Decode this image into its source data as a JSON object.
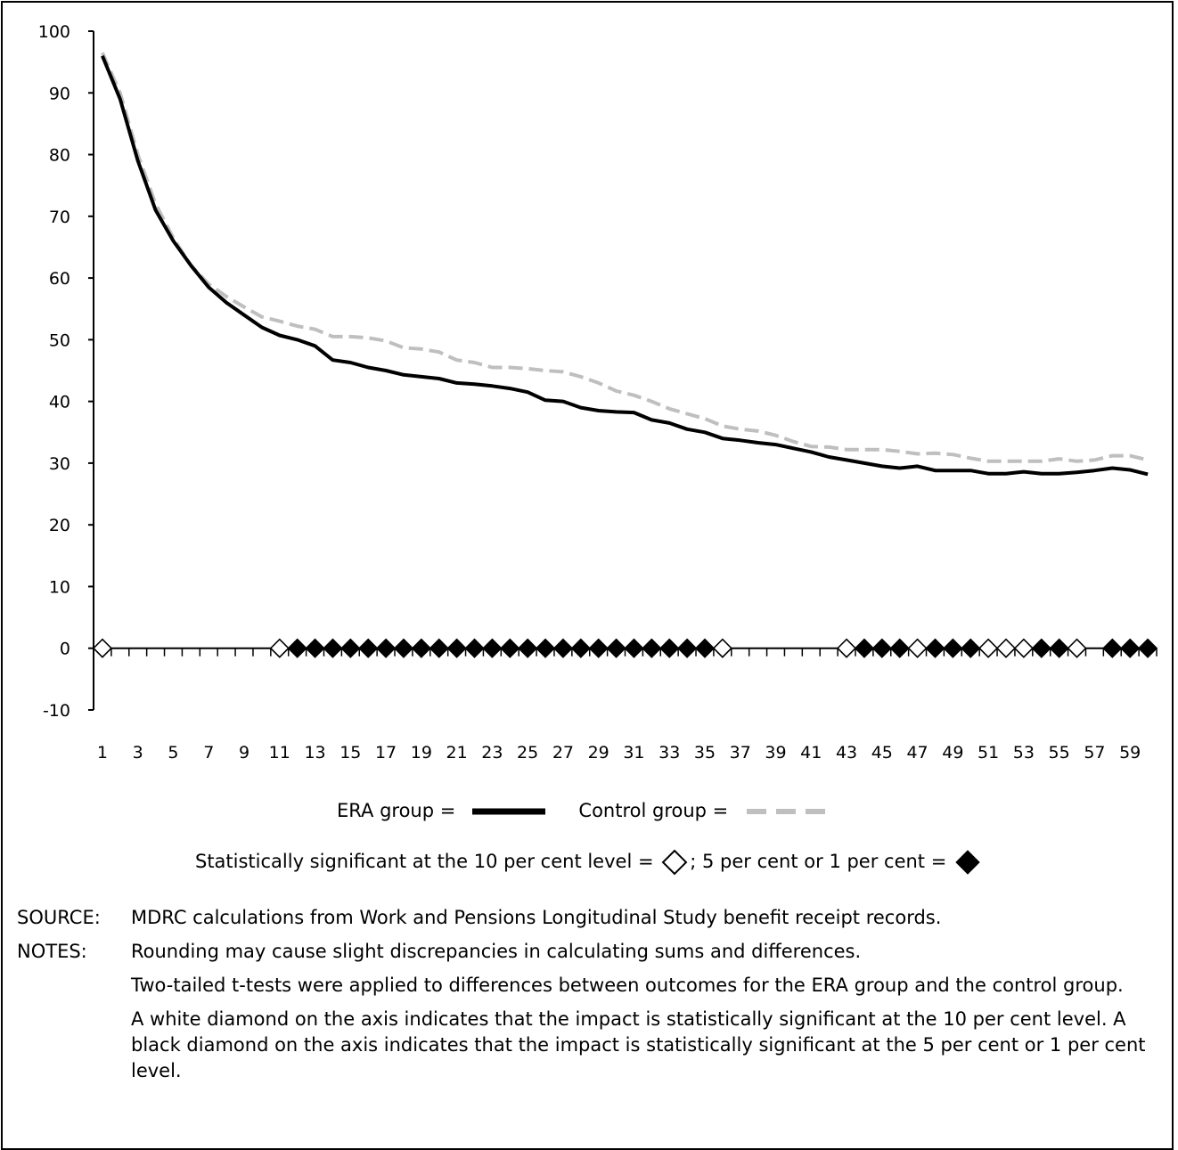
{
  "chart_data": {
    "type": "line",
    "x": [
      1,
      2,
      3,
      4,
      5,
      6,
      7,
      8,
      9,
      10,
      11,
      12,
      13,
      14,
      15,
      16,
      17,
      18,
      19,
      20,
      21,
      22,
      23,
      24,
      25,
      26,
      27,
      28,
      29,
      30,
      31,
      32,
      33,
      34,
      35,
      36,
      37,
      38,
      39,
      40,
      41,
      42,
      43,
      44,
      45,
      46,
      47,
      48,
      49,
      50,
      51,
      52,
      53,
      54,
      55,
      56,
      57,
      58,
      59,
      60
    ],
    "x_tick_labels": [
      "1",
      "3",
      "5",
      "7",
      "9",
      "11",
      "13",
      "15",
      "17",
      "19",
      "21",
      "23",
      "25",
      "27",
      "29",
      "31",
      "33",
      "35",
      "37",
      "39",
      "41",
      "43",
      "45",
      "47",
      "49",
      "51",
      "53",
      "55",
      "57",
      "59"
    ],
    "ylim": [
      -10,
      100
    ],
    "y_ticks": [
      "-10",
      "0",
      "10",
      "20",
      "30",
      "40",
      "50",
      "60",
      "70",
      "80",
      "90",
      "100"
    ],
    "series": [
      {
        "name": "ERA group",
        "color": "#000000",
        "style": "solid",
        "values": [
          96,
          89,
          79,
          71,
          66,
          62,
          58.5,
          56,
          54,
          52,
          50.7,
          50,
          49,
          46.7,
          46.3,
          45.5,
          45,
          44.3,
          44,
          43.7,
          43,
          42.8,
          42.5,
          42.1,
          41.5,
          40.2,
          40,
          39,
          38.5,
          38.3,
          38.2,
          37,
          36.5,
          35.5,
          35,
          34,
          33.7,
          33.3,
          33,
          32.4,
          31.8,
          31,
          30.5,
          30,
          29.5,
          29.2,
          29.5,
          28.8,
          28.8,
          28.8,
          28.3,
          28.3,
          28.6,
          28.3,
          28.3,
          28.5,
          28.8,
          29.2,
          28.9,
          28.2
        ]
      },
      {
        "name": "Control group",
        "color": "#bfbfbf",
        "style": "dashed",
        "values": [
          96.5,
          90,
          80,
          72,
          66.5,
          62,
          59,
          57,
          55.3,
          53.7,
          53,
          52.2,
          51.7,
          50.5,
          50.5,
          50.3,
          49.8,
          48.7,
          48.5,
          48,
          46.7,
          46.3,
          45.5,
          45.5,
          45.3,
          45,
          44.8,
          44,
          43,
          41.7,
          41,
          40,
          38.8,
          38,
          37.2,
          36,
          35.5,
          35.2,
          34.5,
          33.5,
          32.7,
          32.6,
          32.2,
          32.2,
          32.2,
          31.9,
          31.5,
          31.6,
          31.4,
          30.8,
          30.3,
          30.3,
          30.3,
          30.3,
          30.7,
          30.3,
          30.5,
          31.2,
          31.2,
          30.5
        ]
      }
    ],
    "significance": {
      "ten_percent": [
        1,
        11,
        36,
        43,
        47,
        51,
        52,
        53,
        56
      ],
      "five_or_one_percent": [
        12,
        13,
        14,
        15,
        16,
        17,
        18,
        19,
        20,
        21,
        22,
        23,
        24,
        25,
        26,
        27,
        28,
        29,
        30,
        31,
        32,
        33,
        34,
        35,
        44,
        45,
        46,
        48,
        49,
        50,
        54,
        55,
        58,
        59,
        60
      ]
    }
  },
  "legend": {
    "era_label": "ERA group =",
    "control_label": "Control group =",
    "sig_label_10": "Statistically significant at the 10 per cent level =",
    "sig_label_sep": "; 5 per cent or 1 per cent ="
  },
  "notes": {
    "source_label": "SOURCE:",
    "source_text": "MDRC calculations from Work and Pensions Longitudinal Study benefit receipt records.",
    "notes_label": "NOTES:",
    "note_1": "Rounding may cause slight discrepancies in calculating sums and differences.",
    "note_2": "Two-tailed t-tests were applied to differences between outcomes for the ERA group and the control group.",
    "note_3": "A white diamond on the axis indicates that the impact is statistically significant at the 10 per cent level. A black diamond on the axis indicates that the impact is statistically significant at the 5 per cent or 1 per cent level."
  }
}
